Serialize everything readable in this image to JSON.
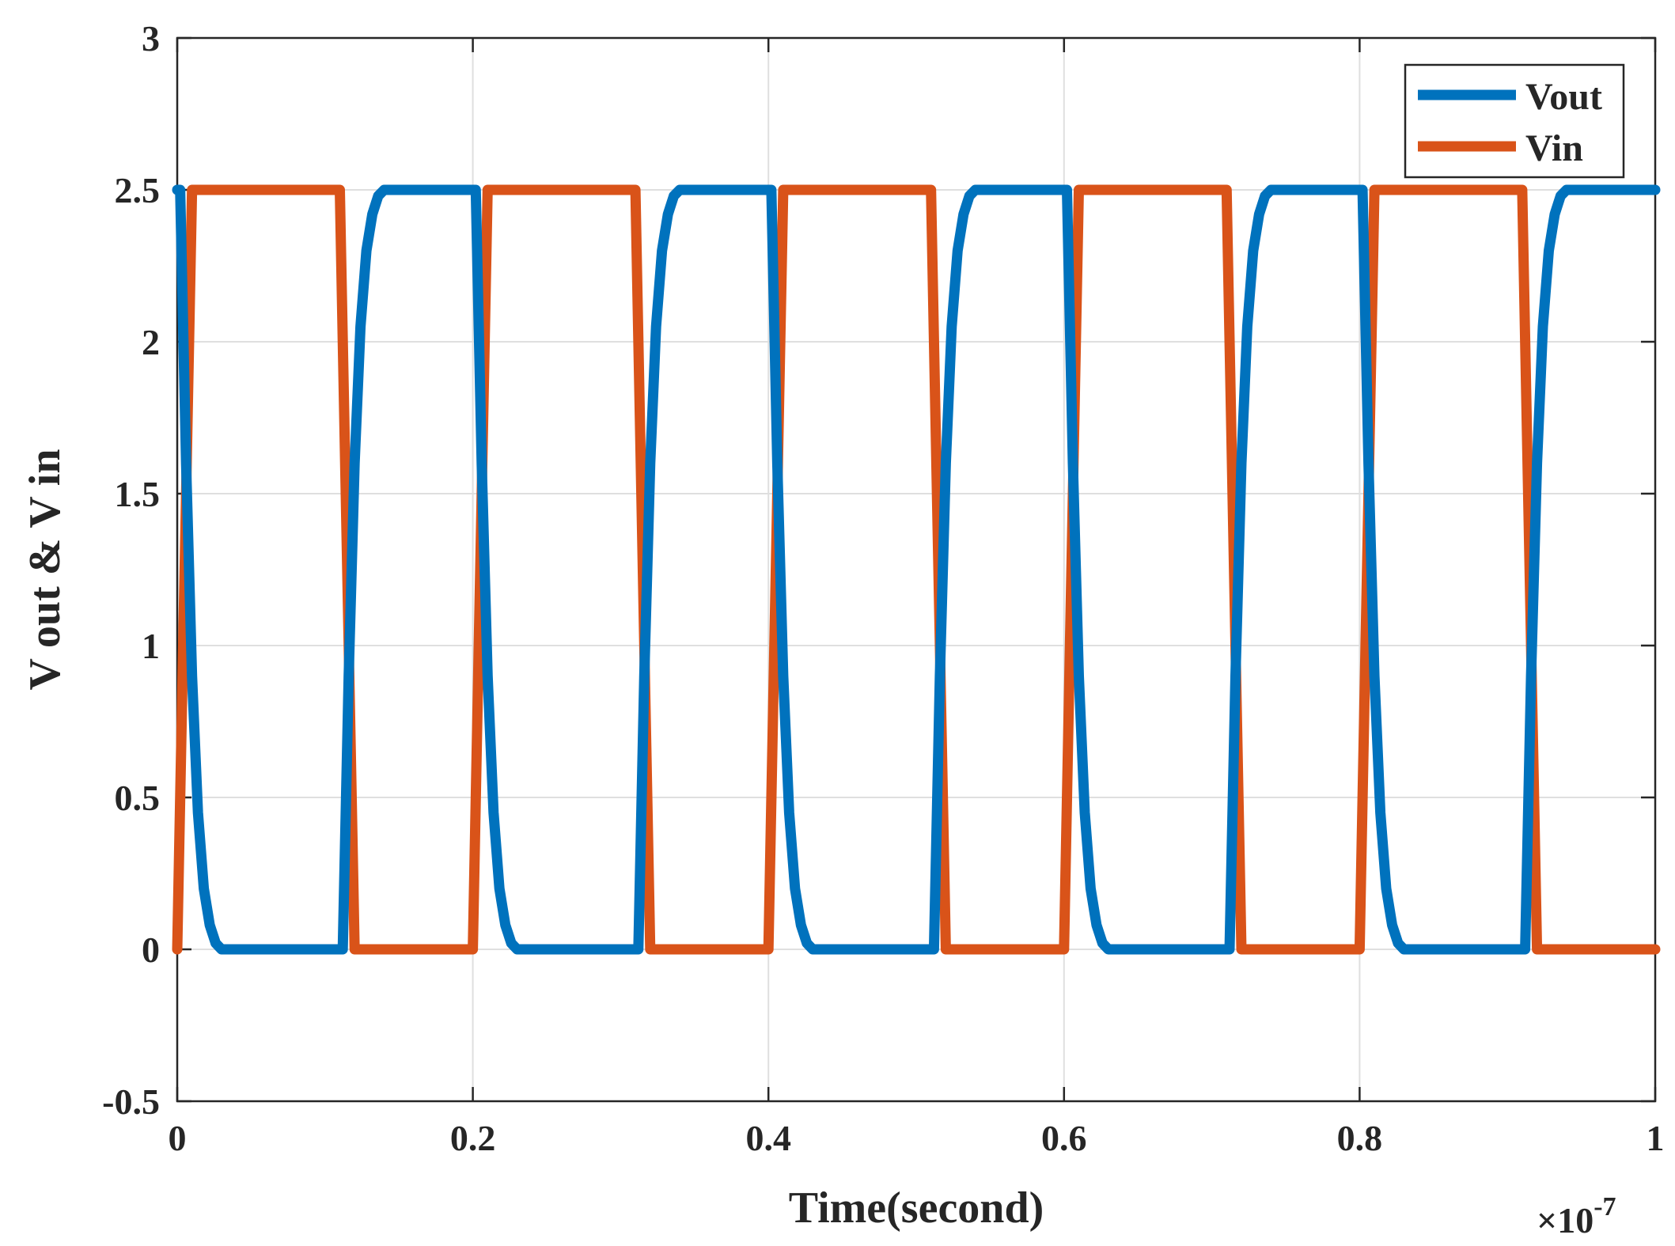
{
  "chart_data": {
    "type": "line",
    "xlabel": "Time(second)",
    "ylabel": "V out & V in",
    "x_exponent": {
      "base": "×10",
      "power": "-7"
    },
    "xlim": [
      0,
      1
    ],
    "ylim": [
      -0.5,
      3
    ],
    "x_ticks": [
      0,
      0.2,
      0.4,
      0.6,
      0.8,
      1
    ],
    "x_tick_labels": [
      "0",
      "0.2",
      "0.4",
      "0.6",
      "0.8",
      "1"
    ],
    "y_ticks": [
      -0.5,
      0,
      0.5,
      1,
      1.5,
      2,
      2.5,
      3
    ],
    "y_tick_labels": [
      "-0.5",
      "0",
      "0.5",
      "1",
      "1.5",
      "2",
      "2.5",
      "3"
    ],
    "grid": true,
    "legend_position": "top-right",
    "series": [
      {
        "name": "Vout",
        "color": "#0072BD",
        "x": [
          0,
          0.002,
          0.006,
          0.01,
          0.014,
          0.018,
          0.022,
          0.026,
          0.03,
          0.05,
          0.08,
          0.11,
          0.112,
          0.116,
          0.12,
          0.124,
          0.128,
          0.132,
          0.136,
          0.14,
          0.16,
          0.19,
          0.2,
          0.202,
          0.206,
          0.21,
          0.214,
          0.218,
          0.222,
          0.226,
          0.23,
          0.25,
          0.28,
          0.31,
          0.312,
          0.316,
          0.32,
          0.324,
          0.328,
          0.332,
          0.336,
          0.34,
          0.36,
          0.39,
          0.4,
          0.402,
          0.406,
          0.41,
          0.414,
          0.418,
          0.422,
          0.426,
          0.43,
          0.45,
          0.48,
          0.51,
          0.512,
          0.516,
          0.52,
          0.524,
          0.528,
          0.532,
          0.536,
          0.54,
          0.56,
          0.59,
          0.6,
          0.602,
          0.606,
          0.61,
          0.614,
          0.618,
          0.622,
          0.626,
          0.63,
          0.65,
          0.68,
          0.71,
          0.712,
          0.716,
          0.72,
          0.724,
          0.728,
          0.732,
          0.736,
          0.74,
          0.76,
          0.79,
          0.8,
          0.802,
          0.806,
          0.81,
          0.814,
          0.818,
          0.822,
          0.826,
          0.83,
          0.85,
          0.88,
          0.91,
          0.912,
          0.916,
          0.92,
          0.924,
          0.928,
          0.932,
          0.936,
          0.94,
          0.96,
          1.0
        ],
        "y": [
          2.5,
          2.5,
          1.6,
          0.9,
          0.45,
          0.2,
          0.08,
          0.02,
          0,
          0,
          0,
          0,
          0,
          0.9,
          1.6,
          2.05,
          2.3,
          2.42,
          2.48,
          2.5,
          2.5,
          2.5,
          2.5,
          2.5,
          1.6,
          0.9,
          0.45,
          0.2,
          0.08,
          0.02,
          0,
          0,
          0,
          0,
          0,
          0.9,
          1.6,
          2.05,
          2.3,
          2.42,
          2.48,
          2.5,
          2.5,
          2.5,
          2.5,
          2.5,
          1.6,
          0.9,
          0.45,
          0.2,
          0.08,
          0.02,
          0,
          0,
          0,
          0,
          0,
          0.9,
          1.6,
          2.05,
          2.3,
          2.42,
          2.48,
          2.5,
          2.5,
          2.5,
          2.5,
          2.5,
          1.6,
          0.9,
          0.45,
          0.2,
          0.08,
          0.02,
          0,
          0,
          0,
          0,
          0,
          0.9,
          1.6,
          2.05,
          2.3,
          2.42,
          2.48,
          2.5,
          2.5,
          2.5,
          2.5,
          2.5,
          1.6,
          0.9,
          0.45,
          0.2,
          0.08,
          0.02,
          0,
          0,
          0,
          0,
          0,
          0.9,
          1.6,
          2.05,
          2.3,
          2.42,
          2.48,
          2.5,
          2.5,
          2.5
        ]
      },
      {
        "name": "Vin",
        "color": "#D95319",
        "x": [
          0,
          0.01,
          0.11,
          0.12,
          0.2,
          0.21,
          0.31,
          0.32,
          0.4,
          0.41,
          0.51,
          0.52,
          0.6,
          0.61,
          0.71,
          0.72,
          0.8,
          0.81,
          0.91,
          0.92,
          1.0
        ],
        "y": [
          0,
          2.5,
          2.5,
          0,
          0,
          2.5,
          2.5,
          0,
          0,
          2.5,
          2.5,
          0,
          0,
          2.5,
          2.5,
          0,
          0,
          2.5,
          2.5,
          0,
          0
        ]
      }
    ]
  }
}
